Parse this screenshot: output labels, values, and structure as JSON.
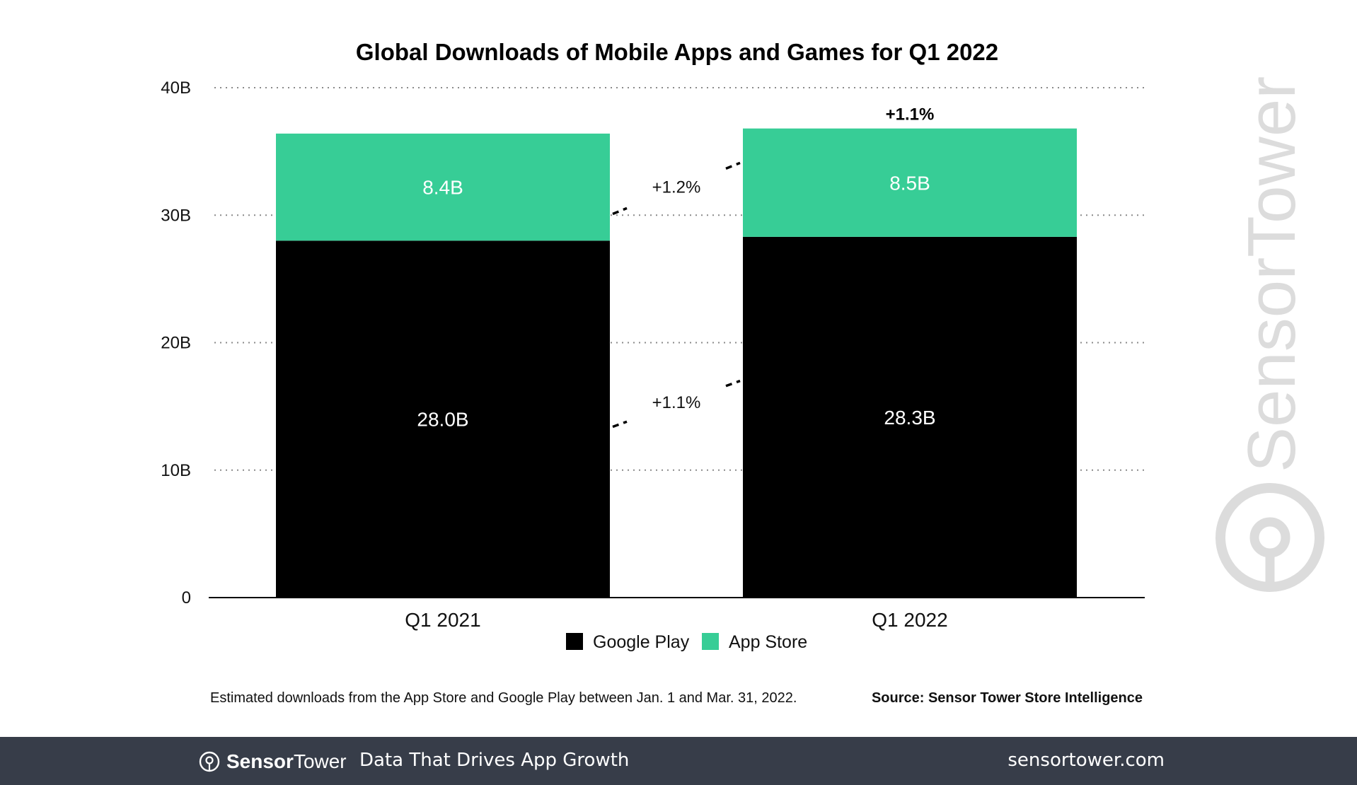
{
  "colors": {
    "google_play": "#000000",
    "app_store": "#37cd96",
    "footer_bg": "#373d49",
    "watermark": "#dcdcdc"
  },
  "chart_data": {
    "type": "bar",
    "stacked": true,
    "title": "Global Downloads of Mobile Apps and Games for Q1 2022",
    "categories": [
      "Q1 2021",
      "Q1 2022"
    ],
    "series": [
      {
        "name": "Google Play",
        "values": [
          28.0,
          28.3
        ],
        "labels": [
          "28.0B",
          "28.3B"
        ],
        "color": "#000000"
      },
      {
        "name": "App Store",
        "values": [
          8.4,
          8.5
        ],
        "labels": [
          "8.4B",
          "8.5B"
        ],
        "color": "#37cd96"
      }
    ],
    "ylim": [
      0,
      40
    ],
    "yticks": [
      0,
      10,
      20,
      30,
      40
    ],
    "ytick_labels": [
      "0",
      "10B",
      "20B",
      "30B",
      "40B"
    ],
    "grid": "dotted horizontal",
    "growth_annotations": [
      {
        "series": "App Store",
        "label": "+1.2%"
      },
      {
        "series": "Google Play",
        "label": "+1.1%"
      }
    ],
    "total_growth_label": "+1.1%",
    "legend": [
      "Google Play",
      "App Store"
    ],
    "legend_position": "bottom-center",
    "xlabel": "",
    "ylabel": ""
  },
  "footnote": "Estimated downloads from the App Store and Google Play between Jan. 1 and Mar. 31, 2022.",
  "source": "Source: Sensor Tower Store Intelligence",
  "watermark": "SensorTower",
  "footer": {
    "logo_bold": "Sensor",
    "logo_regular": "Tower",
    "tagline": "Data That Drives App Growth",
    "url": "sensortower.com"
  }
}
